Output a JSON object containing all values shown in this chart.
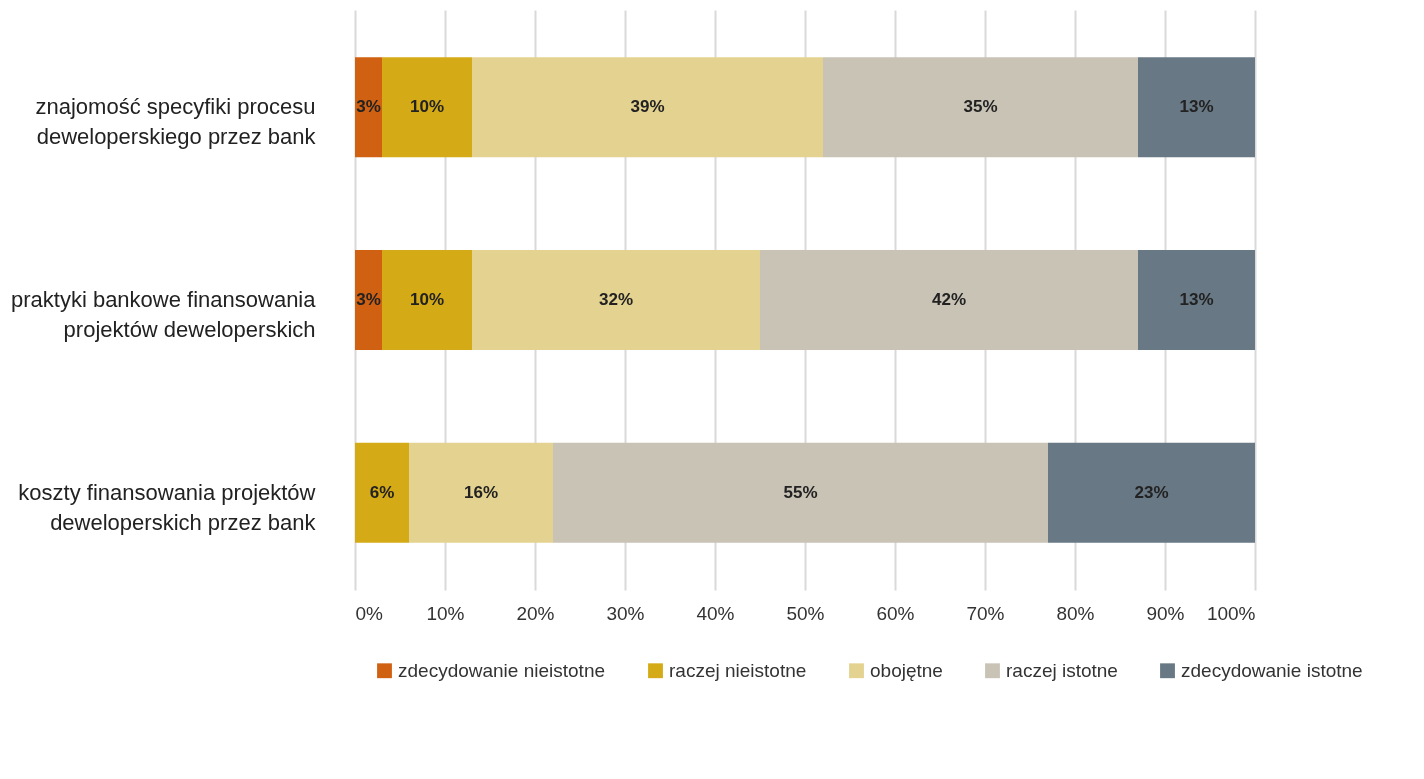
{
  "chart_data": {
    "type": "bar",
    "orientation": "horizontal",
    "stacked": true,
    "categories": [
      "znajomość specyfiki procesu deweloperskiego przez bank",
      "praktyki bankowe finansowania projektów deweloperskich",
      "koszty finansowania projektów deweloperskich przez bank"
    ],
    "series": [
      {
        "name": "zdecydowanie nieistotne",
        "color": "#d06012",
        "values": [
          3,
          3,
          null
        ]
      },
      {
        "name": "raczej nieistotne",
        "color": "#d4aa16",
        "values": [
          10,
          10,
          6
        ]
      },
      {
        "name": "obojętne",
        "color": "#e4d290",
        "values": [
          39,
          32,
          16
        ]
      },
      {
        "name": "raczej istotne",
        "color": "#c9c3b6",
        "values": [
          35,
          42,
          55
        ]
      },
      {
        "name": "zdecydowanie istotne",
        "color": "#687884",
        "values": [
          13,
          13,
          23
        ]
      }
    ],
    "xlim": [
      0,
      100
    ],
    "xticks": [
      {
        "value": 0,
        "label": "0%"
      },
      {
        "value": 10,
        "label": "10%"
      },
      {
        "value": 20,
        "label": "20%"
      },
      {
        "value": 30,
        "label": "30%"
      },
      {
        "value": 40,
        "label": "40%"
      },
      {
        "value": 50,
        "label": "50%"
      },
      {
        "value": 60,
        "label": "60%"
      },
      {
        "value": 70,
        "label": "70%"
      },
      {
        "value": 80,
        "label": "80%"
      },
      {
        "value": 90,
        "label": "90%"
      },
      {
        "value": 100,
        "label": "100%"
      }
    ],
    "value_labels": [
      [
        "3%",
        "3%",
        null
      ],
      [
        "10%",
        "10%",
        "6%"
      ],
      [
        "39%",
        "32%",
        "16%"
      ],
      [
        "35%",
        "42%",
        "55%"
      ],
      [
        "13%",
        "13%",
        "23%"
      ]
    ],
    "grid": "x",
    "legend": "bottom"
  }
}
